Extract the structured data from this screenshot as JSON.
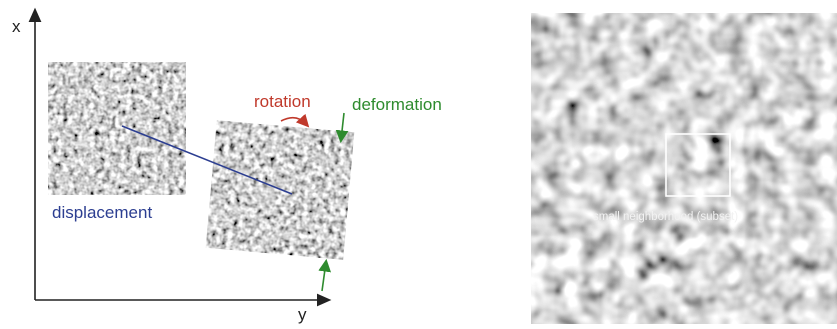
{
  "labels": {
    "axis_x": "x",
    "axis_y": "y",
    "rotation": "rotation",
    "deformation": "deformation",
    "displacement": "displacement",
    "subset": "small neighborhood (subset)"
  },
  "colors": {
    "rotation": "#c0392b",
    "deformation": "#2e8b2e",
    "displacement": "#2c3e91",
    "axis": "#222222",
    "subset_box": "#ffffff"
  }
}
